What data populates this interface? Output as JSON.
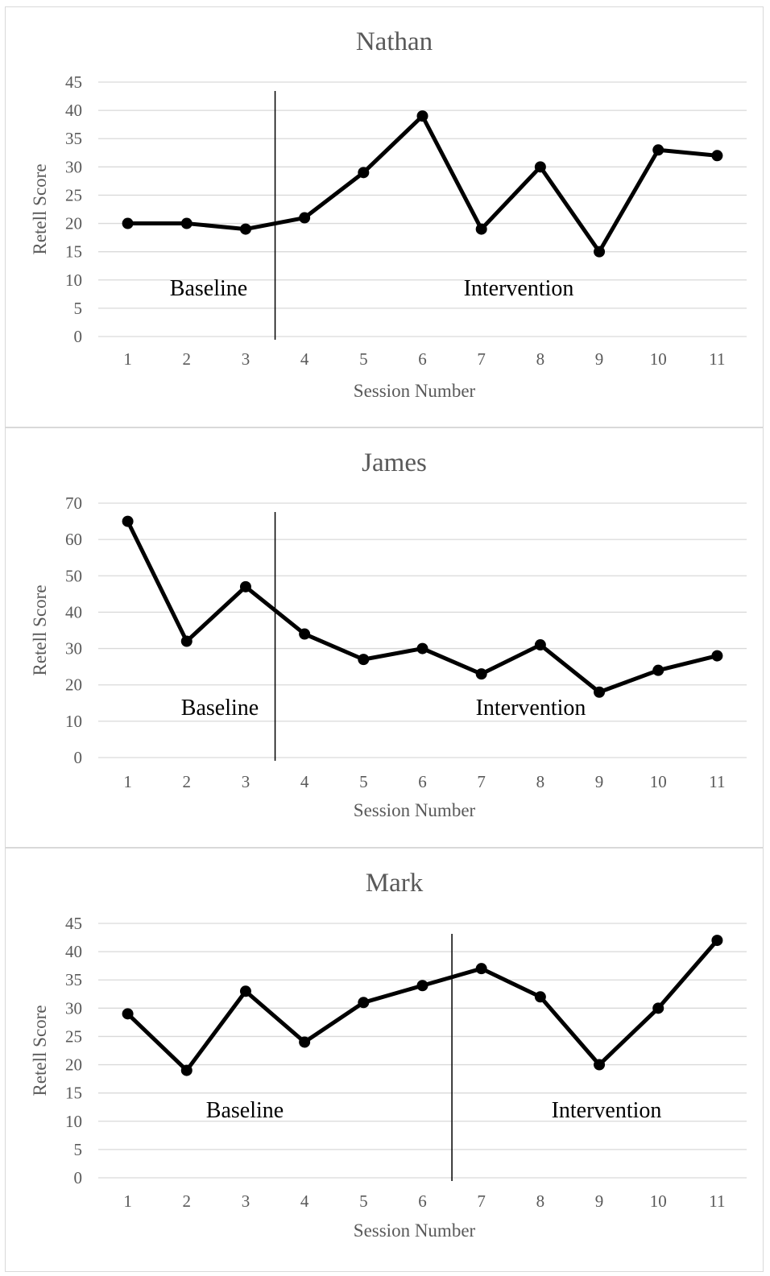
{
  "chart_data": [
    {
      "type": "line",
      "title": "Nathan",
      "xlabel": "Session Number",
      "ylabel": "Retell Score",
      "categories": [
        "1",
        "2",
        "3",
        "4",
        "5",
        "6",
        "7",
        "8",
        "9",
        "10",
        "11"
      ],
      "values": [
        20,
        20,
        19,
        21,
        29,
        39,
        19,
        30,
        15,
        33,
        32
      ],
      "ylim": [
        0,
        45
      ],
      "ystep": 5,
      "grid": true,
      "phase_change_after_session": 3,
      "phase_labels": [
        "Baseline",
        "Intervention"
      ],
      "line_color": "#000000"
    },
    {
      "type": "line",
      "title": "James",
      "xlabel": "Session Number",
      "ylabel": "Retell Score",
      "categories": [
        "1",
        "2",
        "3",
        "4",
        "5",
        "6",
        "7",
        "8",
        "9",
        "10",
        "11"
      ],
      "values": [
        65,
        32,
        47,
        34,
        27,
        30,
        23,
        31,
        18,
        24,
        28
      ],
      "ylim": [
        0,
        70
      ],
      "ystep": 10,
      "grid": true,
      "phase_change_after_session": 3,
      "phase_labels": [
        "Baseline",
        "Intervention"
      ],
      "line_color": "#000000"
    },
    {
      "type": "line",
      "title": "Mark",
      "xlabel": "Session Number",
      "ylabel": "Retell Score",
      "categories": [
        "1",
        "2",
        "3",
        "4",
        "5",
        "6",
        "7",
        "8",
        "9",
        "10",
        "11"
      ],
      "values": [
        29,
        19,
        33,
        24,
        31,
        34,
        37,
        32,
        20,
        30,
        42
      ],
      "ylim": [
        0,
        45
      ],
      "ystep": 5,
      "grid": true,
      "phase_change_after_session": 6,
      "phase_labels": [
        "Baseline",
        "Intervention"
      ],
      "line_color": "#000000"
    }
  ]
}
